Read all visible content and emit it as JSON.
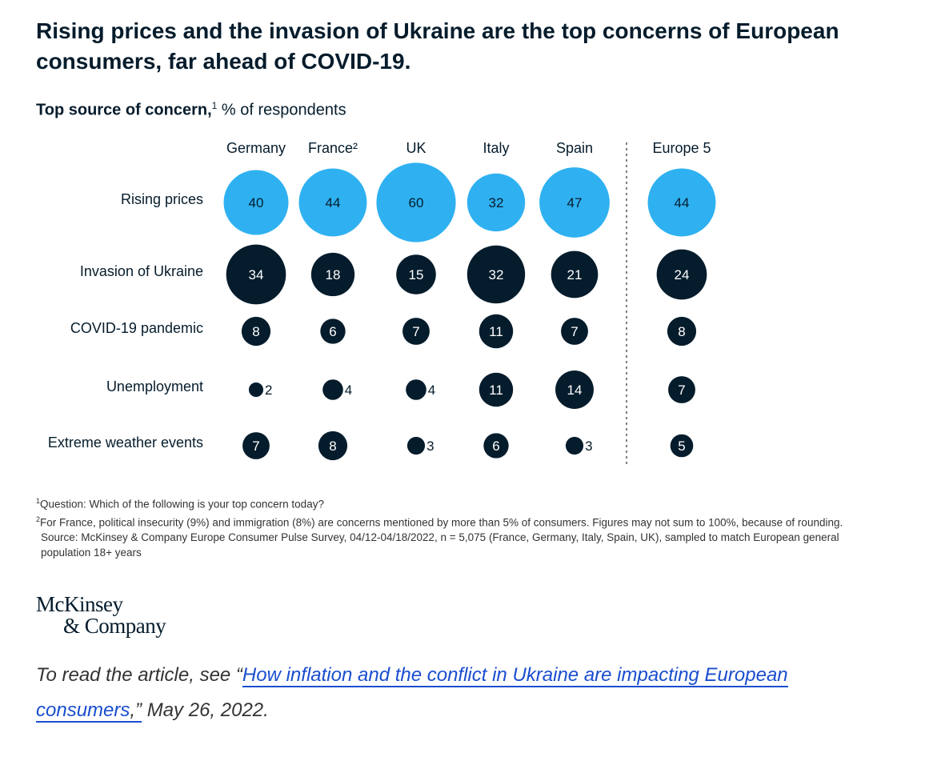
{
  "title": "Rising prices and the invasion of Ukraine are the top concerns of European consumers, far ahead of COVID-19.",
  "subtitle_bold": "Top source of concern,",
  "subtitle_sup": "1",
  "subtitle_rest": " % of respondents",
  "colors": {
    "rising_prices": "#2fb1f1",
    "other": "#051c2c",
    "divider": "#555555"
  },
  "chart_data": {
    "type": "bubble-grid",
    "columns": [
      "Germany",
      "France²",
      "UK",
      "Italy",
      "Spain",
      "Europe 5"
    ],
    "rows": [
      "Rising prices",
      "Invasion of Ukraine",
      "COVID-19 pandemic",
      "Unemployment",
      "Extreme weather events"
    ],
    "values": [
      [
        40,
        44,
        60,
        32,
        47,
        44
      ],
      [
        34,
        18,
        15,
        32,
        21,
        24
      ],
      [
        8,
        6,
        7,
        11,
        7,
        8
      ],
      [
        2,
        4,
        4,
        11,
        14,
        7
      ],
      [
        7,
        8,
        3,
        6,
        3,
        5
      ]
    ],
    "highlight_row": "Rising prices",
    "divider_before_column": "Europe 5"
  },
  "footnotes": {
    "note1_sup": "1",
    "note1": "Question: Which of the following is your top concern today?",
    "note2_sup": "2",
    "note2": "For France, political insecurity (9%) and immigration (8%) are concerns mentioned by more than 5% of consumers. Figures may not sum to 100%, because of rounding.",
    "source": "Source: McKinsey & Company Europe Consumer Pulse Survey, 04/12-04/18/2022, n = 5,075 (France, Germany, Italy, Spain, UK), sampled to match European general population 18+ years"
  },
  "logo": {
    "line1": "McKinsey",
    "line2": "& Company"
  },
  "article": {
    "prefix": "To read the article, see “",
    "link_text": "How inflation and the conflict in Ukraine are impacting European consumers",
    "suffix_in_link": ",”",
    "suffix": " May 26, 2022."
  }
}
